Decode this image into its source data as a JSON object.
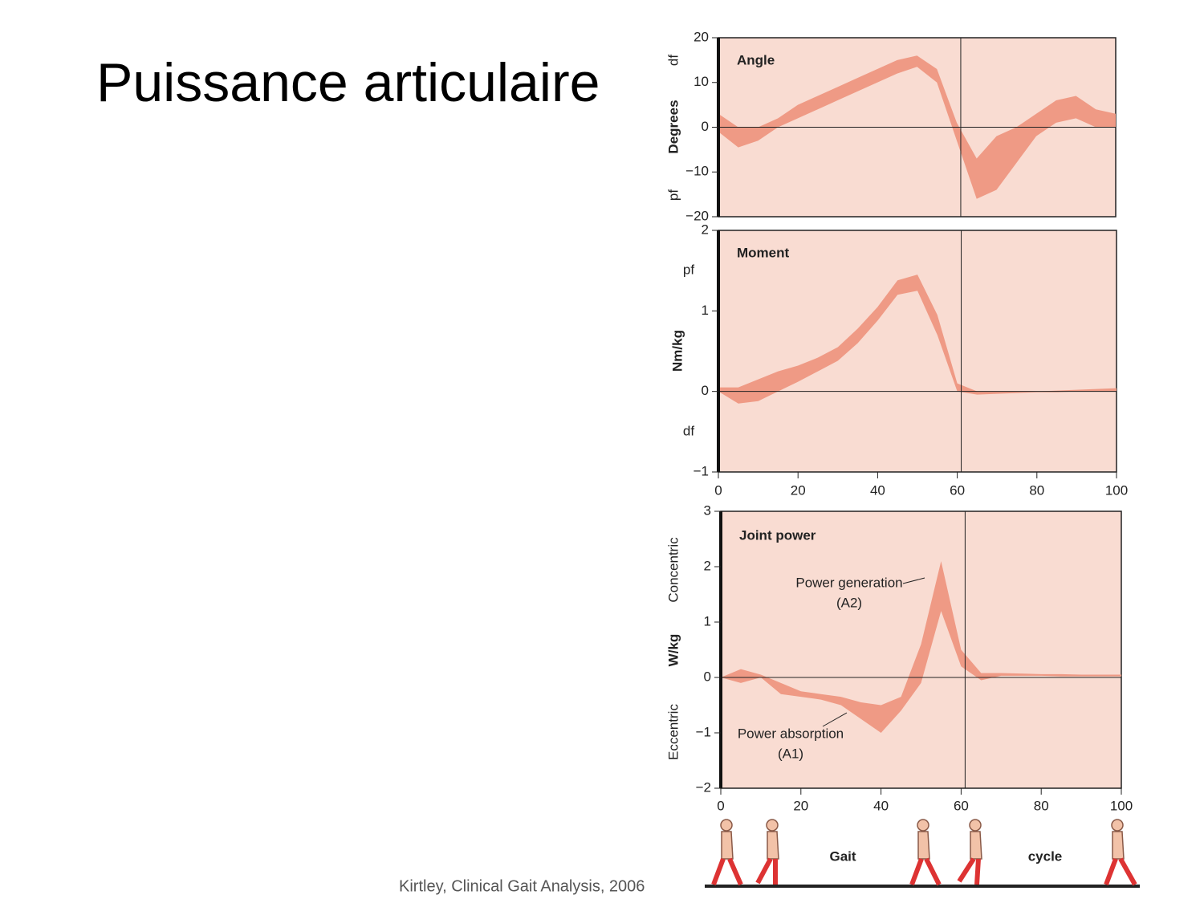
{
  "slide": {
    "title": "Puissance articulaire",
    "citation": "Kirtley, Clinical Gait Analysis, 2006",
    "gait_labels": [
      "Gait",
      "cycle"
    ]
  },
  "chart_data": [
    {
      "type": "band",
      "title": "Angle",
      "y_labels": [
        "df",
        "Degrees",
        "pf"
      ],
      "color": "#ef9a85",
      "background": "#f9dcd2",
      "x": [
        0,
        5,
        10,
        15,
        20,
        25,
        30,
        35,
        40,
        45,
        50,
        55,
        60,
        65,
        70,
        75,
        80,
        85,
        90,
        95,
        100
      ],
      "upper": [
        3,
        0,
        0,
        2,
        5,
        7,
        9,
        11,
        13,
        15,
        16,
        13,
        1,
        -7,
        -2,
        0,
        3,
        6,
        7,
        4,
        3
      ],
      "lower": [
        -1,
        -4.5,
        -3,
        0,
        2,
        4,
        6,
        8,
        10,
        12,
        13.5,
        10,
        -3,
        -16,
        -14,
        -8,
        -2,
        1,
        2,
        0,
        0
      ],
      "vline": 61,
      "xlim": [
        0,
        100
      ],
      "ylim": [
        -20,
        20
      ],
      "yticks": [
        {
          "value": -20,
          "label": "−20"
        },
        {
          "value": -10,
          "label": "−10"
        },
        0,
        10,
        20
      ]
    },
    {
      "type": "band",
      "title": "Moment",
      "y_labels": [
        "pf",
        "Nm/kg",
        "df"
      ],
      "color": "#ef9a85",
      "background": "#f9dcd2",
      "x": [
        0,
        5,
        10,
        15,
        20,
        25,
        30,
        35,
        40,
        45,
        50,
        55,
        60,
        65,
        70,
        75,
        80,
        85,
        90,
        95,
        100
      ],
      "upper": [
        0.05,
        0.05,
        0.15,
        0.25,
        0.32,
        0.42,
        0.55,
        0.78,
        1.05,
        1.38,
        1.45,
        0.95,
        0.1,
        0,
        0,
        0,
        0,
        0.01,
        0.02,
        0.03,
        0.04
      ],
      "lower": [
        0,
        -0.15,
        -0.12,
        0,
        0.12,
        0.25,
        0.38,
        0.6,
        0.88,
        1.2,
        1.25,
        0.7,
        0,
        -0.04,
        -0.03,
        -0.02,
        -0.01,
        -0.01,
        0,
        0,
        0
      ],
      "vline": 61,
      "xlim": [
        0,
        100
      ],
      "ylim": [
        -1,
        2
      ],
      "yticks": [
        {
          "value": -1,
          "label": "−1"
        },
        0,
        1,
        2
      ],
      "xticks": [
        0,
        20,
        40,
        60,
        80,
        100
      ]
    },
    {
      "type": "band",
      "title": "Joint power",
      "y_labels": [
        "Concentric",
        "W/kg",
        "Eccentric"
      ],
      "color": "#ef9a85",
      "background": "#f9dcd2",
      "annotations": [
        "Power generation",
        "(A2)",
        "Power absorption",
        "(A1)"
      ],
      "x": [
        0,
        5,
        10,
        15,
        20,
        25,
        30,
        35,
        40,
        45,
        50,
        55,
        60,
        65,
        70,
        75,
        80,
        85,
        90,
        95,
        100
      ],
      "upper": [
        0,
        0.15,
        0.05,
        -0.1,
        -0.25,
        -0.3,
        -0.35,
        -0.45,
        -0.5,
        -0.35,
        0.6,
        2.1,
        0.5,
        0.08,
        0.08,
        0.07,
        0.06,
        0.06,
        0.05,
        0.05,
        0.05
      ],
      "lower": [
        0,
        -0.1,
        0,
        -0.3,
        -0.35,
        -0.4,
        -0.5,
        -0.75,
        -1.0,
        -0.6,
        -0.1,
        1.2,
        0.2,
        -0.05,
        0.03,
        0.03,
        0.03,
        0.02,
        0.02,
        0.02,
        0.02
      ],
      "vline": 61,
      "xlim": [
        0,
        100
      ],
      "ylim": [
        -2,
        3
      ],
      "yticks": [
        {
          "value": -2,
          "label": "−2"
        },
        {
          "value": -1,
          "label": "−1"
        },
        0,
        1,
        2,
        3
      ],
      "xticks": [
        0,
        20,
        40,
        60,
        80,
        100
      ]
    }
  ]
}
